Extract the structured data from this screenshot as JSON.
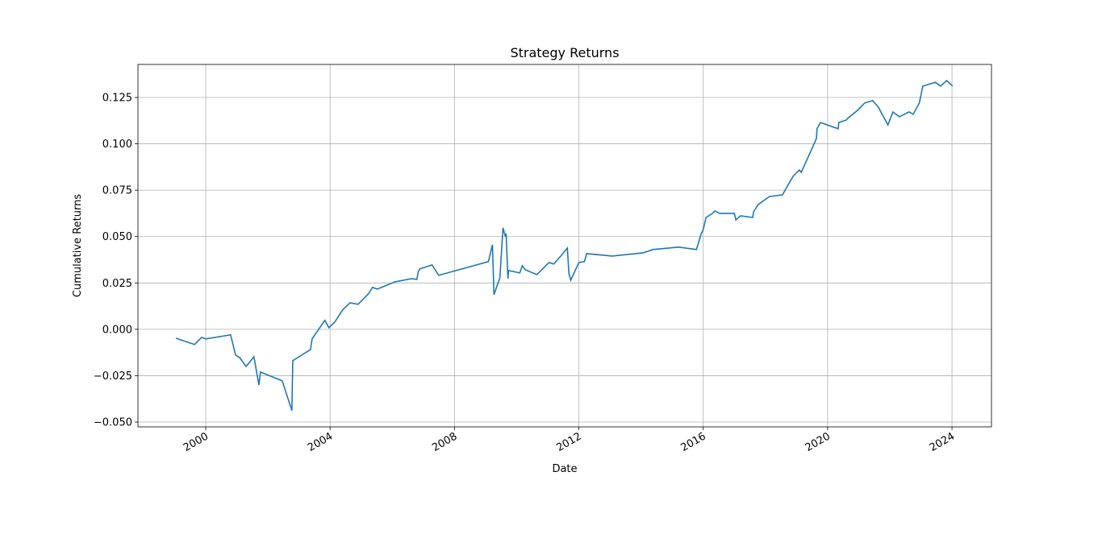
{
  "chart_data": {
    "type": "line",
    "title": "Strategy Returns",
    "x_label": "Date",
    "y_label": "Cumulative Returns",
    "x": [
      1999.04,
      1999.64,
      1999.87,
      2000.0,
      2000.8,
      2000.96,
      2001.09,
      2001.3,
      2001.55,
      2001.71,
      2001.76,
      2002.46,
      2002.77,
      2002.8,
      2003.37,
      2003.42,
      2003.83,
      2003.96,
      2004.15,
      2004.4,
      2004.64,
      2004.9,
      2005.23,
      2005.36,
      2005.52,
      2006.09,
      2006.61,
      2006.79,
      2006.84,
      2006.89,
      2007.28,
      2007.49,
      2009.09,
      2009.22,
      2009.27,
      2009.46,
      2009.56,
      2009.64,
      2009.66,
      2009.72,
      2009.74,
      2010.1,
      2010.18,
      2010.28,
      2010.65,
      2011.04,
      2011.19,
      2011.42,
      2011.63,
      2011.68,
      2011.74,
      2012.0,
      2012.18,
      2012.25,
      2013.08,
      2014.07,
      2014.38,
      2015.21,
      2015.78,
      2015.93,
      2016.0,
      2016.09,
      2016.3,
      2016.37,
      2016.53,
      2017.0,
      2017.05,
      2017.2,
      2017.59,
      2017.62,
      2017.77,
      2018.13,
      2018.55,
      2018.68,
      2018.89,
      2019.09,
      2019.15,
      2019.48,
      2019.64,
      2019.66,
      2019.77,
      2020.34,
      2020.36,
      2020.6,
      2020.67,
      2020.96,
      2021.19,
      2021.45,
      2021.63,
      2021.94,
      2022.1,
      2022.31,
      2022.62,
      2022.75,
      2022.95,
      2023.06,
      2023.47,
      2023.63,
      2023.83,
      2024.02
    ],
    "series": [
      {
        "color": "#1f77b4",
        "values": [
          -0.0048,
          -0.0082,
          -0.0043,
          -0.0052,
          -0.003,
          -0.0139,
          -0.0152,
          -0.02,
          -0.0148,
          -0.03,
          -0.023,
          -0.0278,
          -0.0438,
          -0.0169,
          -0.0109,
          -0.0052,
          0.0048,
          0.0009,
          0.0039,
          0.0104,
          0.0143,
          0.0135,
          0.0191,
          0.0226,
          0.0217,
          0.0256,
          0.0273,
          0.0269,
          0.0313,
          0.0326,
          0.0347,
          0.0291,
          0.0365,
          0.0456,
          0.0187,
          0.0278,
          0.0547,
          0.0499,
          0.0516,
          0.0273,
          0.0317,
          0.0304,
          0.0343,
          0.0321,
          0.0295,
          0.036,
          0.0352,
          0.0395,
          0.0438,
          0.03,
          0.0265,
          0.036,
          0.0365,
          0.0408,
          0.0395,
          0.0412,
          0.043,
          0.0443,
          0.043,
          0.0512,
          0.0538,
          0.0603,
          0.0625,
          0.0638,
          0.0625,
          0.0625,
          0.059,
          0.0612,
          0.0603,
          0.0634,
          0.0673,
          0.0716,
          0.0725,
          0.0764,
          0.0825,
          0.0859,
          0.0846,
          0.0968,
          0.1029,
          0.1081,
          0.1115,
          0.1081,
          0.1115,
          0.1128,
          0.1141,
          0.118,
          0.122,
          0.1233,
          0.1198,
          0.1102,
          0.1172,
          0.1146,
          0.1172,
          0.1159,
          0.122,
          0.1311,
          0.1332,
          0.1311,
          0.1341,
          0.1311
        ]
      }
    ],
    "xlim": [
      1997.82,
      2025.27
    ],
    "xticks": [
      2000,
      2004,
      2008,
      2012,
      2016,
      2020,
      2024
    ],
    "ylim": [
      -0.0526,
      0.1428
    ],
    "yticks": [
      {
        "value": -0.05,
        "label": "−0.050"
      },
      {
        "value": -0.025,
        "label": "−0.025"
      },
      {
        "value": 0,
        "label": "0.000"
      },
      0.025,
      {
        "value": 0.05,
        "label": "0.050"
      },
      0.075,
      {
        "value": 0.1,
        "label": "0.100"
      },
      0.125
    ],
    "grid": true
  }
}
